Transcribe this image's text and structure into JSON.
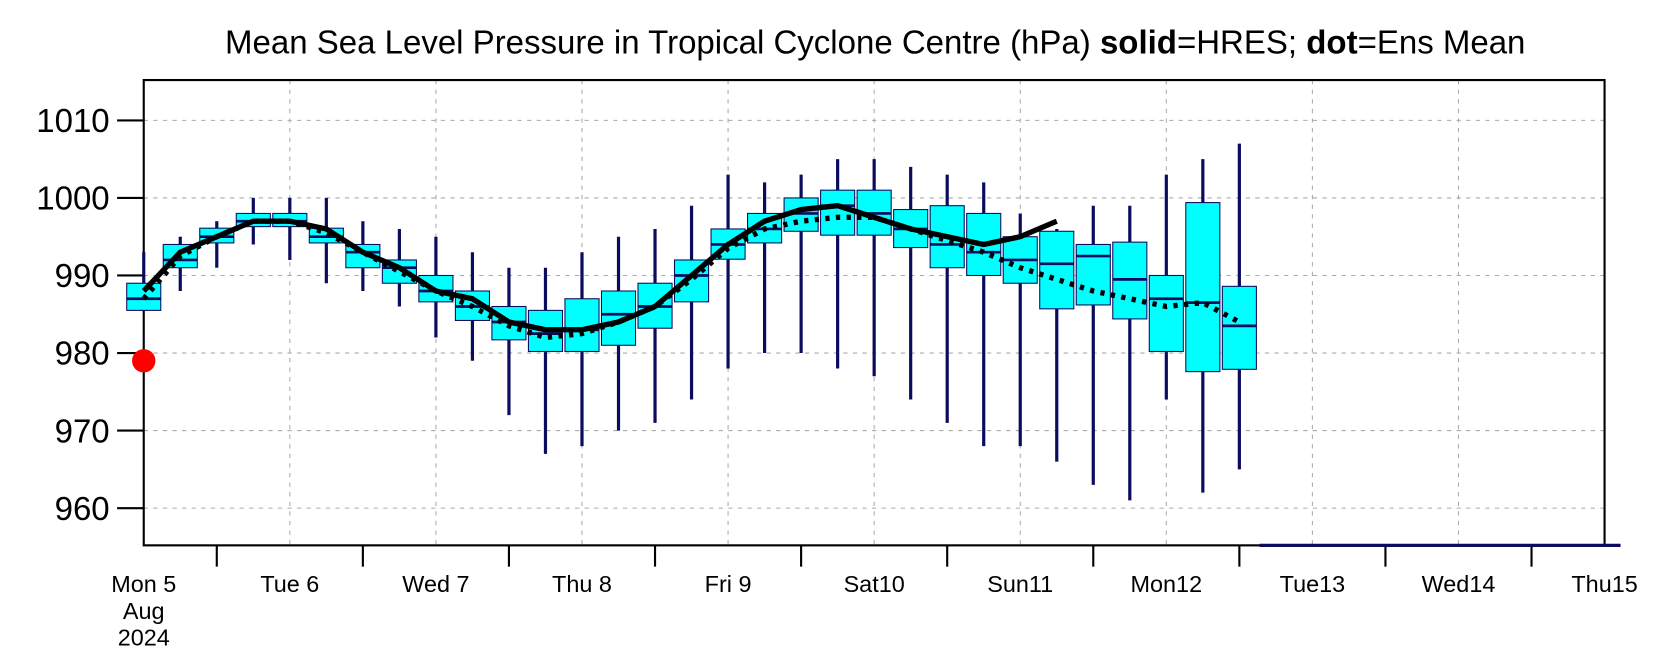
{
  "chart_data": {
    "type": "box",
    "title_parts": [
      {
        "text": "Mean Sea Level Pressure in Tropical Cyclone Centre (hPa) ",
        "bold": false
      },
      {
        "text": "solid",
        "bold": true
      },
      {
        "text": "=HRES; ",
        "bold": false
      },
      {
        "text": "dot",
        "bold": true
      },
      {
        "text": "=Ens Mean",
        "bold": false
      }
    ],
    "x": [
      0,
      6,
      12,
      18,
      24,
      30,
      36,
      42,
      48,
      54,
      60,
      66,
      72,
      78,
      84,
      90,
      96,
      102,
      108,
      114,
      120,
      126,
      132,
      138,
      144,
      150,
      156,
      162,
      168,
      174,
      180
    ],
    "boxes": {
      "low": [
        985.5,
        988,
        991,
        994,
        992,
        989,
        988,
        986,
        982,
        979,
        972,
        967,
        968,
        970,
        971,
        974,
        978,
        980,
        980,
        978,
        977,
        974,
        971,
        968,
        968,
        966,
        963,
        961,
        974,
        962,
        965
      ],
      "q1": [
        985.5,
        991,
        994.2,
        996.3,
        996.3,
        994.2,
        991,
        989,
        986.6,
        984.2,
        981.7,
        980.2,
        980.2,
        981,
        983.2,
        986.6,
        992.1,
        994.2,
        995.7,
        995.2,
        995.2,
        993.6,
        991,
        990,
        989,
        985.7,
        986.2,
        984.4,
        980.2,
        977.6,
        977.9
      ],
      "median": [
        987,
        992,
        995,
        997,
        997,
        995,
        993,
        991,
        988,
        986,
        984,
        982.5,
        983,
        985,
        986,
        990,
        994,
        996,
        998,
        999,
        998,
        996,
        994,
        993,
        992,
        991.5,
        992.5,
        989.5,
        987,
        986.5,
        983.5
      ],
      "q3": [
        989,
        994,
        996.1,
        998,
        998,
        996.1,
        994,
        992,
        990,
        988,
        986,
        985.5,
        987,
        988,
        989,
        992,
        996,
        998,
        1000,
        1001,
        1001,
        998.5,
        999,
        998,
        995,
        995.7,
        994,
        994.3,
        990,
        999.4,
        988.6
      ],
      "high": [
        993,
        995,
        997,
        1000,
        1000,
        1000,
        997,
        996,
        995,
        993,
        991,
        991,
        993,
        995,
        996,
        999,
        1003,
        1002,
        1003,
        1005,
        1005,
        1004,
        1003,
        1002,
        998,
        996,
        999,
        999,
        1003,
        1005,
        1007
      ],
      "fill": "#00ffff",
      "color": "#0c0c5e"
    },
    "series": [
      {
        "style": "solid",
        "color": "#000000",
        "values": [
          988,
          993,
          995,
          997,
          997,
          996,
          993,
          991,
          988,
          987,
          984,
          983,
          983,
          984,
          986,
          990,
          994,
          997,
          998.5,
          999,
          997.5,
          996,
          995,
          994,
          995,
          997,
          null,
          null,
          null,
          null,
          null
        ]
      },
      {
        "style": "dot",
        "color": "#000000",
        "values": [
          987,
          992.5,
          995,
          997,
          997,
          995.5,
          993,
          990.5,
          988,
          986,
          983.5,
          982,
          982.5,
          984,
          986,
          989.5,
          993.5,
          996,
          997,
          997.5,
          997.5,
          996,
          994.5,
          993,
          991,
          989.5,
          988,
          987,
          986,
          986.5,
          984
        ]
      }
    ],
    "analysis_point": {
      "x": 0,
      "value": 979,
      "color": "#ff0000"
    },
    "xlim": [
      0,
      240
    ],
    "xticks": [
      {
        "value": 0,
        "label": "Mon 5"
      },
      {
        "value": 24,
        "label": "Tue 6"
      },
      {
        "value": 48,
        "label": "Wed 7"
      },
      {
        "value": 72,
        "label": "Thu 8"
      },
      {
        "value": 96,
        "label": "Fri 9"
      },
      {
        "value": 120,
        "label": "Sat10"
      },
      {
        "value": 144,
        "label": "Sun11",
        "color": "#ff0000"
      },
      {
        "value": 168,
        "label": "Mon12"
      },
      {
        "value": 192,
        "label": "Tue13"
      },
      {
        "value": 216,
        "label": "Wed14"
      },
      {
        "value": 240,
        "label": "Thu15"
      }
    ],
    "x_date_lines": [
      "Aug",
      "2024"
    ],
    "x_tick_marks": [
      12,
      36,
      60,
      84,
      108,
      132,
      156,
      180,
      204,
      228
    ],
    "ylim": [
      955.2,
      1015.2
    ],
    "yticks": [
      960,
      970,
      980,
      990,
      1000,
      1010
    ],
    "grid": true
  }
}
